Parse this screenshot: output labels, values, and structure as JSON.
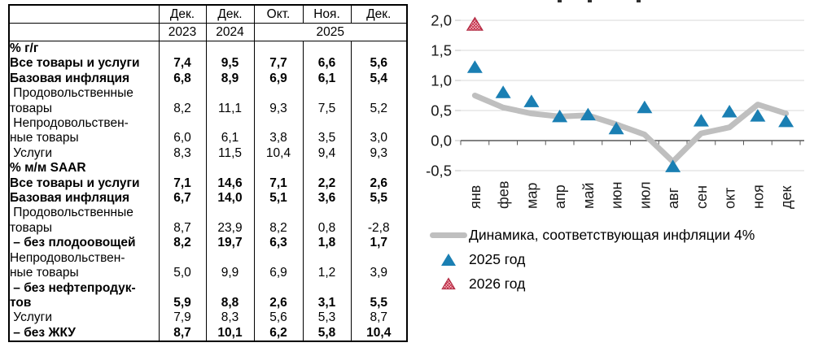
{
  "table": {
    "unit_note": "",
    "header_row1": [
      "Дек.",
      "Дек.",
      "Окт.",
      "Ноя.",
      "Дек."
    ],
    "header_row2": {
      "y2023": "2023",
      "y2024": "2024",
      "y2025": "2025"
    },
    "rows": [
      {
        "lines": [
          "% г/г"
        ],
        "bold": true,
        "values": null
      },
      {
        "lines": [
          "Все товары и услуги"
        ],
        "bold": true,
        "values": [
          "7,4",
          "9,5",
          "7,7",
          "6,6",
          "5,6"
        ]
      },
      {
        "lines": [
          "Базовая инфляция"
        ],
        "bold": true,
        "values": [
          "6,8",
          "8,9",
          "6,9",
          "6,1",
          "5,4"
        ]
      },
      {
        "lines": [
          " Продовольственные",
          "товары"
        ],
        "bold": false,
        "values": [
          "8,2",
          "11,1",
          "9,3",
          "7,5",
          "5,2"
        ]
      },
      {
        "lines": [
          " Непродовольствен-",
          "ные товары"
        ],
        "bold": false,
        "values": [
          "6,0",
          "6,1",
          "3,8",
          "3,5",
          "3,0"
        ]
      },
      {
        "lines": [
          " Услуги"
        ],
        "bold": false,
        "values": [
          "8,3",
          "11,5",
          "10,4",
          "9,4",
          "9,3"
        ]
      },
      {
        "lines": [
          "% м/м SAAR"
        ],
        "bold": true,
        "values": null
      },
      {
        "lines": [
          "Все товары и услуги"
        ],
        "bold": true,
        "values": [
          "7,1",
          "14,6",
          "7,1",
          "2,2",
          "2,6"
        ]
      },
      {
        "lines": [
          "Базовая инфляция"
        ],
        "bold": true,
        "values": [
          "6,7",
          "14,0",
          "5,1",
          "3,6",
          "5,5"
        ]
      },
      {
        "lines": [
          " Продовольственные",
          "товары"
        ],
        "bold": false,
        "values": [
          "8,7",
          "23,9",
          "8,2",
          "0,8",
          "-2,8"
        ]
      },
      {
        "lines": [
          " – без плодоовощей"
        ],
        "bold": true,
        "values": [
          "8,2",
          "19,7",
          "6,3",
          "1,8",
          "1,7"
        ]
      },
      {
        "lines": [
          "Непродовольствен-",
          "ные товары"
        ],
        "bold": false,
        "values": [
          "5,0",
          "9,9",
          "6,9",
          "1,2",
          "3,9"
        ]
      },
      {
        "lines": [
          " – без нефтепродук-",
          "тов"
        ],
        "bold": true,
        "values": [
          "5,9",
          "8,8",
          "2,6",
          "3,1",
          "5,5"
        ]
      },
      {
        "lines": [
          " Услуги"
        ],
        "bold": false,
        "values": [
          "7,9",
          "8,3",
          "5,6",
          "5,3",
          "8,7"
        ]
      },
      {
        "lines": [
          " – без ЖКУ"
        ],
        "bold": true,
        "values": [
          "8,7",
          "10,1",
          "6,2",
          "5,8",
          "10,4"
        ]
      }
    ]
  },
  "chart_data": {
    "type": "line",
    "title": "",
    "x": [
      "янв",
      "фев",
      "мар",
      "апр",
      "май",
      "июн",
      "июл",
      "авг",
      "сен",
      "окт",
      "ноя",
      "дек"
    ],
    "ylim": [
      -0.5,
      2.0
    ],
    "yticks": [
      2.0,
      1.5,
      1.0,
      0.5,
      0.0,
      -0.5
    ],
    "ytick_labels": [
      "2,0",
      "1,5",
      "1,0",
      "0,5",
      "0,0",
      "-0,5"
    ],
    "grid": true,
    "legend_position": "bottom-left",
    "series": [
      {
        "name": "Динамика, соответствующая инфляции 4%",
        "type": "line",
        "marker": "none",
        "color": "#bfbfbf",
        "values": [
          0.75,
          0.55,
          0.45,
          0.4,
          0.42,
          0.27,
          0.1,
          -0.35,
          0.12,
          0.22,
          0.6,
          0.45
        ]
      },
      {
        "name": "2025 год",
        "type": "scatter",
        "marker": "triangle",
        "color": "#1a7fb3",
        "values": [
          1.22,
          0.8,
          0.65,
          0.4,
          0.43,
          0.2,
          0.55,
          -0.43,
          0.33,
          0.48,
          0.41,
          0.32
        ]
      },
      {
        "name": "2026 год",
        "type": "scatter",
        "marker": "triangle-hatched",
        "color": "#c9314b",
        "values": [
          1.93,
          null,
          null,
          null,
          null,
          null,
          null,
          null,
          null,
          null,
          null,
          null
        ]
      }
    ]
  },
  "colors": {
    "grid": "#d9d9d9",
    "axis": "#595959",
    "tick": "#bfbfbf",
    "blue": "#1a7fb3",
    "red": "#c9314b",
    "gray_line": "#bfbfbf"
  }
}
